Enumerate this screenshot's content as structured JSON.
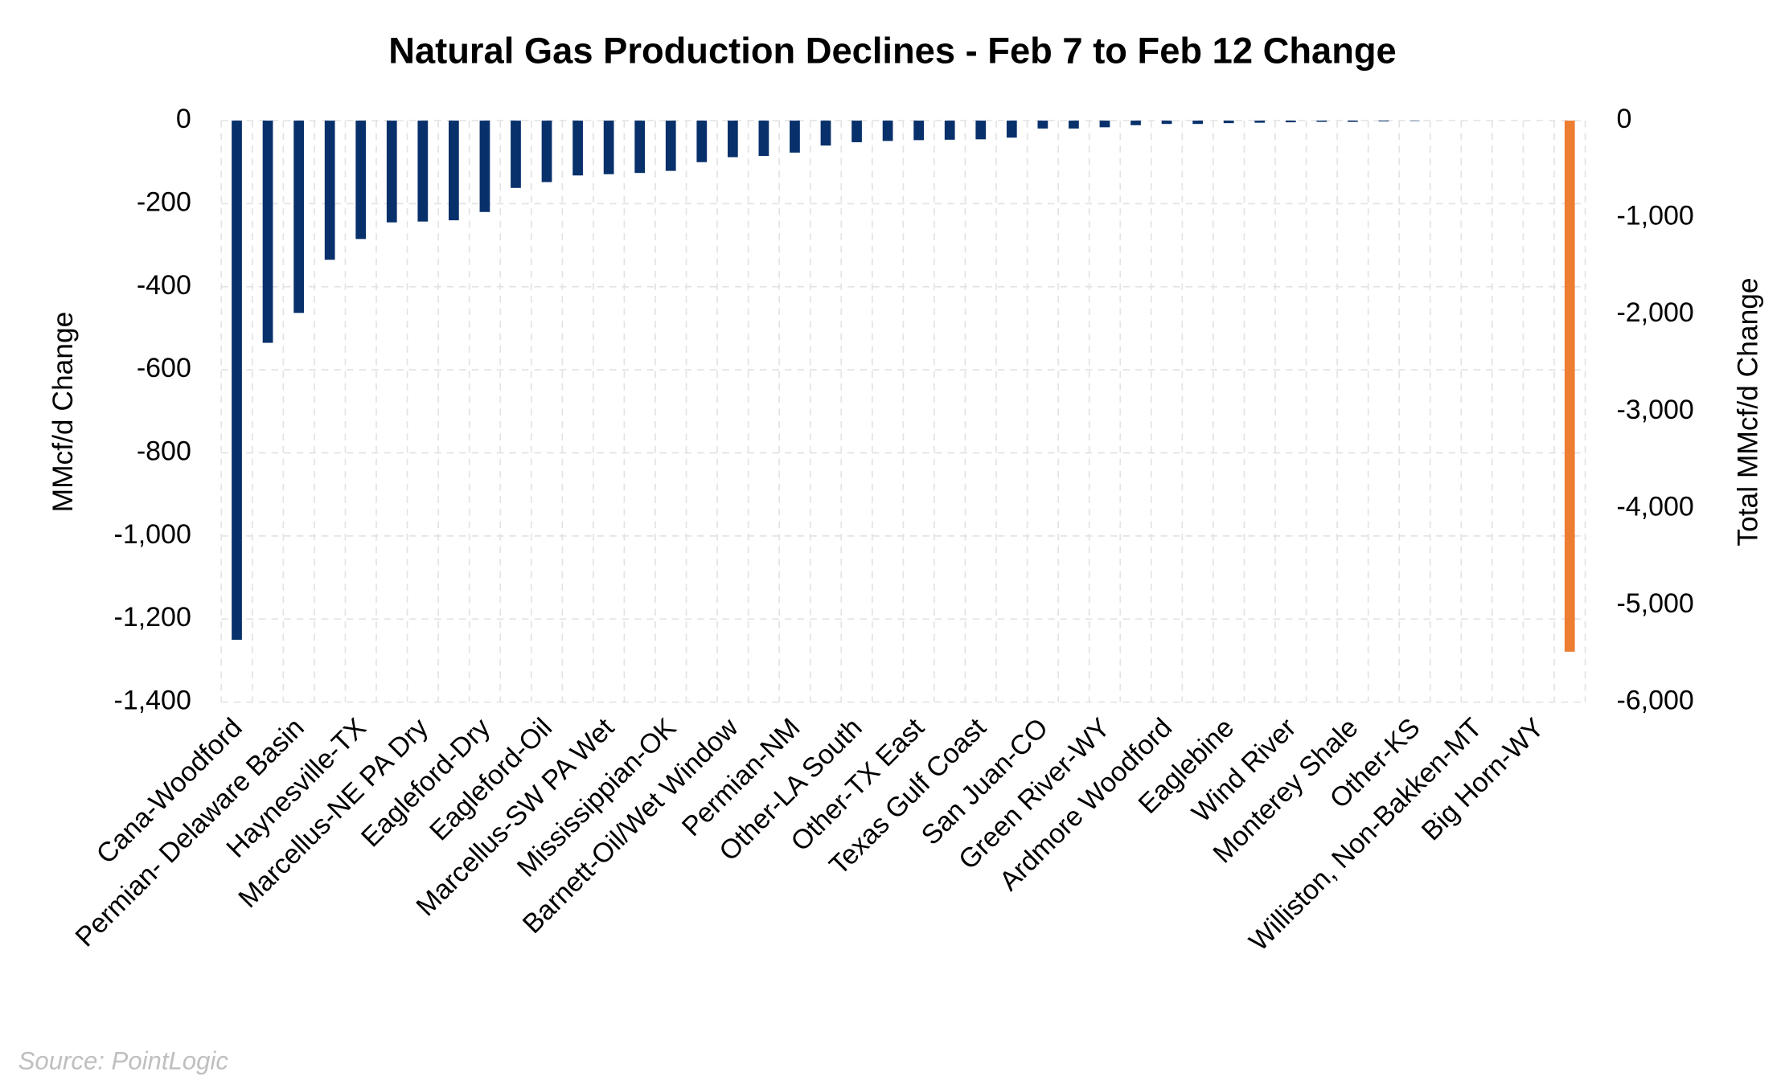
{
  "chart_data": {
    "type": "bar",
    "title": "Natural Gas Production Declines - Feb 7 to Feb 12 Change",
    "ylabel": "MMcf/d Change",
    "y2label": "Total MMcf/d Change",
    "source": "Source: PointLogic",
    "categories": [
      "Cana-Woodford",
      null,
      "Permian- Delaware Basin",
      null,
      "Haynesville-TX",
      null,
      "Marcellus-NE PA Dry",
      null,
      "Eagleford-Dry",
      null,
      "Eagleford-Oil",
      null,
      "Marcellus-SW PA Wet",
      null,
      "Mississippian-OK",
      null,
      "Barnett-Oil/Wet Window",
      null,
      "Permian-NM",
      null,
      "Other-LA South",
      null,
      "Other-TX East",
      null,
      "Texas Gulf Coast",
      null,
      "San Juan-CO",
      null,
      "Green River-WY",
      null,
      "Ardmore Woodford",
      null,
      "Eaglebine",
      null,
      "Wind River",
      null,
      "Monterey Shale",
      null,
      "Other-KS",
      null,
      "Williston, Non-Bakken-MT",
      null,
      "Big Horn-WY",
      null
    ],
    "series": [
      {
        "color": "#08306b",
        "values": [
          -1250,
          -535,
          -463,
          -335,
          -285,
          -245,
          -243,
          -240,
          -220,
          -162,
          -148,
          -132,
          -129,
          -126,
          -121,
          -100,
          -88,
          -85,
          -77,
          -60,
          -52,
          -49,
          -47,
          -46,
          -45,
          -41,
          -19,
          -19,
          -16,
          -11,
          -8,
          -8,
          -6,
          -5,
          -4,
          -3,
          -3,
          -2,
          -1,
          0,
          0,
          0,
          0,
          null
        ]
      },
      {
        "color": "#ed7d31",
        "axis": "y2",
        "values": [
          null,
          null,
          null,
          null,
          null,
          null,
          null,
          null,
          null,
          null,
          null,
          null,
          null,
          null,
          null,
          null,
          null,
          null,
          null,
          null,
          null,
          null,
          null,
          null,
          null,
          null,
          null,
          null,
          null,
          null,
          null,
          null,
          null,
          null,
          null,
          null,
          null,
          null,
          null,
          null,
          null,
          null,
          null,
          -5480
        ]
      }
    ],
    "ylim": [
      -1400,
      0
    ],
    "yticks": [
      0,
      {
        "value": -200,
        "label": "-200"
      },
      {
        "value": -400,
        "label": "-400"
      },
      {
        "value": -600,
        "label": "-600"
      },
      {
        "value": -800,
        "label": "-800"
      },
      {
        "value": -1000,
        "label": "-1,000"
      },
      {
        "value": -1200,
        "label": "-1,200"
      },
      {
        "value": -1400,
        "label": "-1,400"
      }
    ],
    "y2lim": [
      -6000,
      0
    ],
    "y2ticks": [
      0,
      {
        "value": -1000,
        "label": "-1,000"
      },
      {
        "value": -2000,
        "label": "-2,000"
      },
      {
        "value": -3000,
        "label": "-3,000"
      },
      {
        "value": -4000,
        "label": "-4,000"
      },
      {
        "value": -5000,
        "label": "-5,000"
      },
      {
        "value": -6000,
        "label": "-6,000"
      }
    ],
    "grid": true
  }
}
